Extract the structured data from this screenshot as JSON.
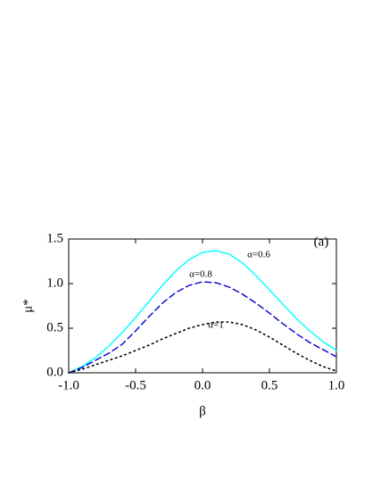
{
  "chart_data": {
    "type": "line",
    "x_label": "β",
    "y_label": "μ*",
    "panel_label": "(a)",
    "x": [
      -1,
      -0.9,
      -0.8,
      -0.7,
      -0.6,
      -0.5,
      -0.4,
      -0.3,
      -0.2,
      -0.1,
      0,
      0.1,
      0.2,
      0.3,
      0.4,
      0.5,
      0.6,
      0.7,
      0.8,
      0.9,
      1
    ],
    "series": [
      {
        "name": "α=0.6",
        "color": "#00ffff",
        "dash": "solid",
        "values": [
          0,
          0.07,
          0.17,
          0.3,
          0.45,
          0.62,
          0.8,
          0.98,
          1.14,
          1.27,
          1.35,
          1.37,
          1.33,
          1.23,
          1.09,
          0.93,
          0.77,
          0.61,
          0.47,
          0.35,
          0.25
        ]
      },
      {
        "name": "α=0.8",
        "color": "#0000cc",
        "dash": "dashed",
        "values": [
          0,
          0.06,
          0.14,
          0.22,
          0.32,
          0.47,
          0.63,
          0.78,
          0.9,
          0.98,
          1.02,
          1.01,
          0.96,
          0.88,
          0.78,
          0.67,
          0.55,
          0.44,
          0.34,
          0.26,
          0.18
        ]
      },
      {
        "name": "α=1",
        "color": "#000000",
        "dash": "dotted",
        "values": [
          0,
          0.04,
          0.09,
          0.14,
          0.19,
          0.25,
          0.31,
          0.38,
          0.44,
          0.5,
          0.54,
          0.57,
          0.57,
          0.54,
          0.48,
          0.4,
          0.31,
          0.22,
          0.14,
          0.07,
          0.02
        ]
      }
    ],
    "xlim": [
      -1,
      1
    ],
    "xticks": [
      {
        "value": -1,
        "label": "-1.0"
      },
      {
        "value": -0.5,
        "label": "-0.5"
      },
      {
        "value": 0,
        "label": "0.0"
      },
      {
        "value": 0.5,
        "label": "0.5"
      },
      {
        "value": 1,
        "label": "1.0"
      }
    ],
    "ylim": [
      0,
      1.5
    ],
    "yticks": [
      {
        "value": 0,
        "label": "0.0"
      },
      {
        "value": 0.5,
        "label": "0.5"
      },
      {
        "value": 1,
        "label": "1.0"
      },
      {
        "value": 1.5,
        "label": "1.5"
      }
    ]
  }
}
